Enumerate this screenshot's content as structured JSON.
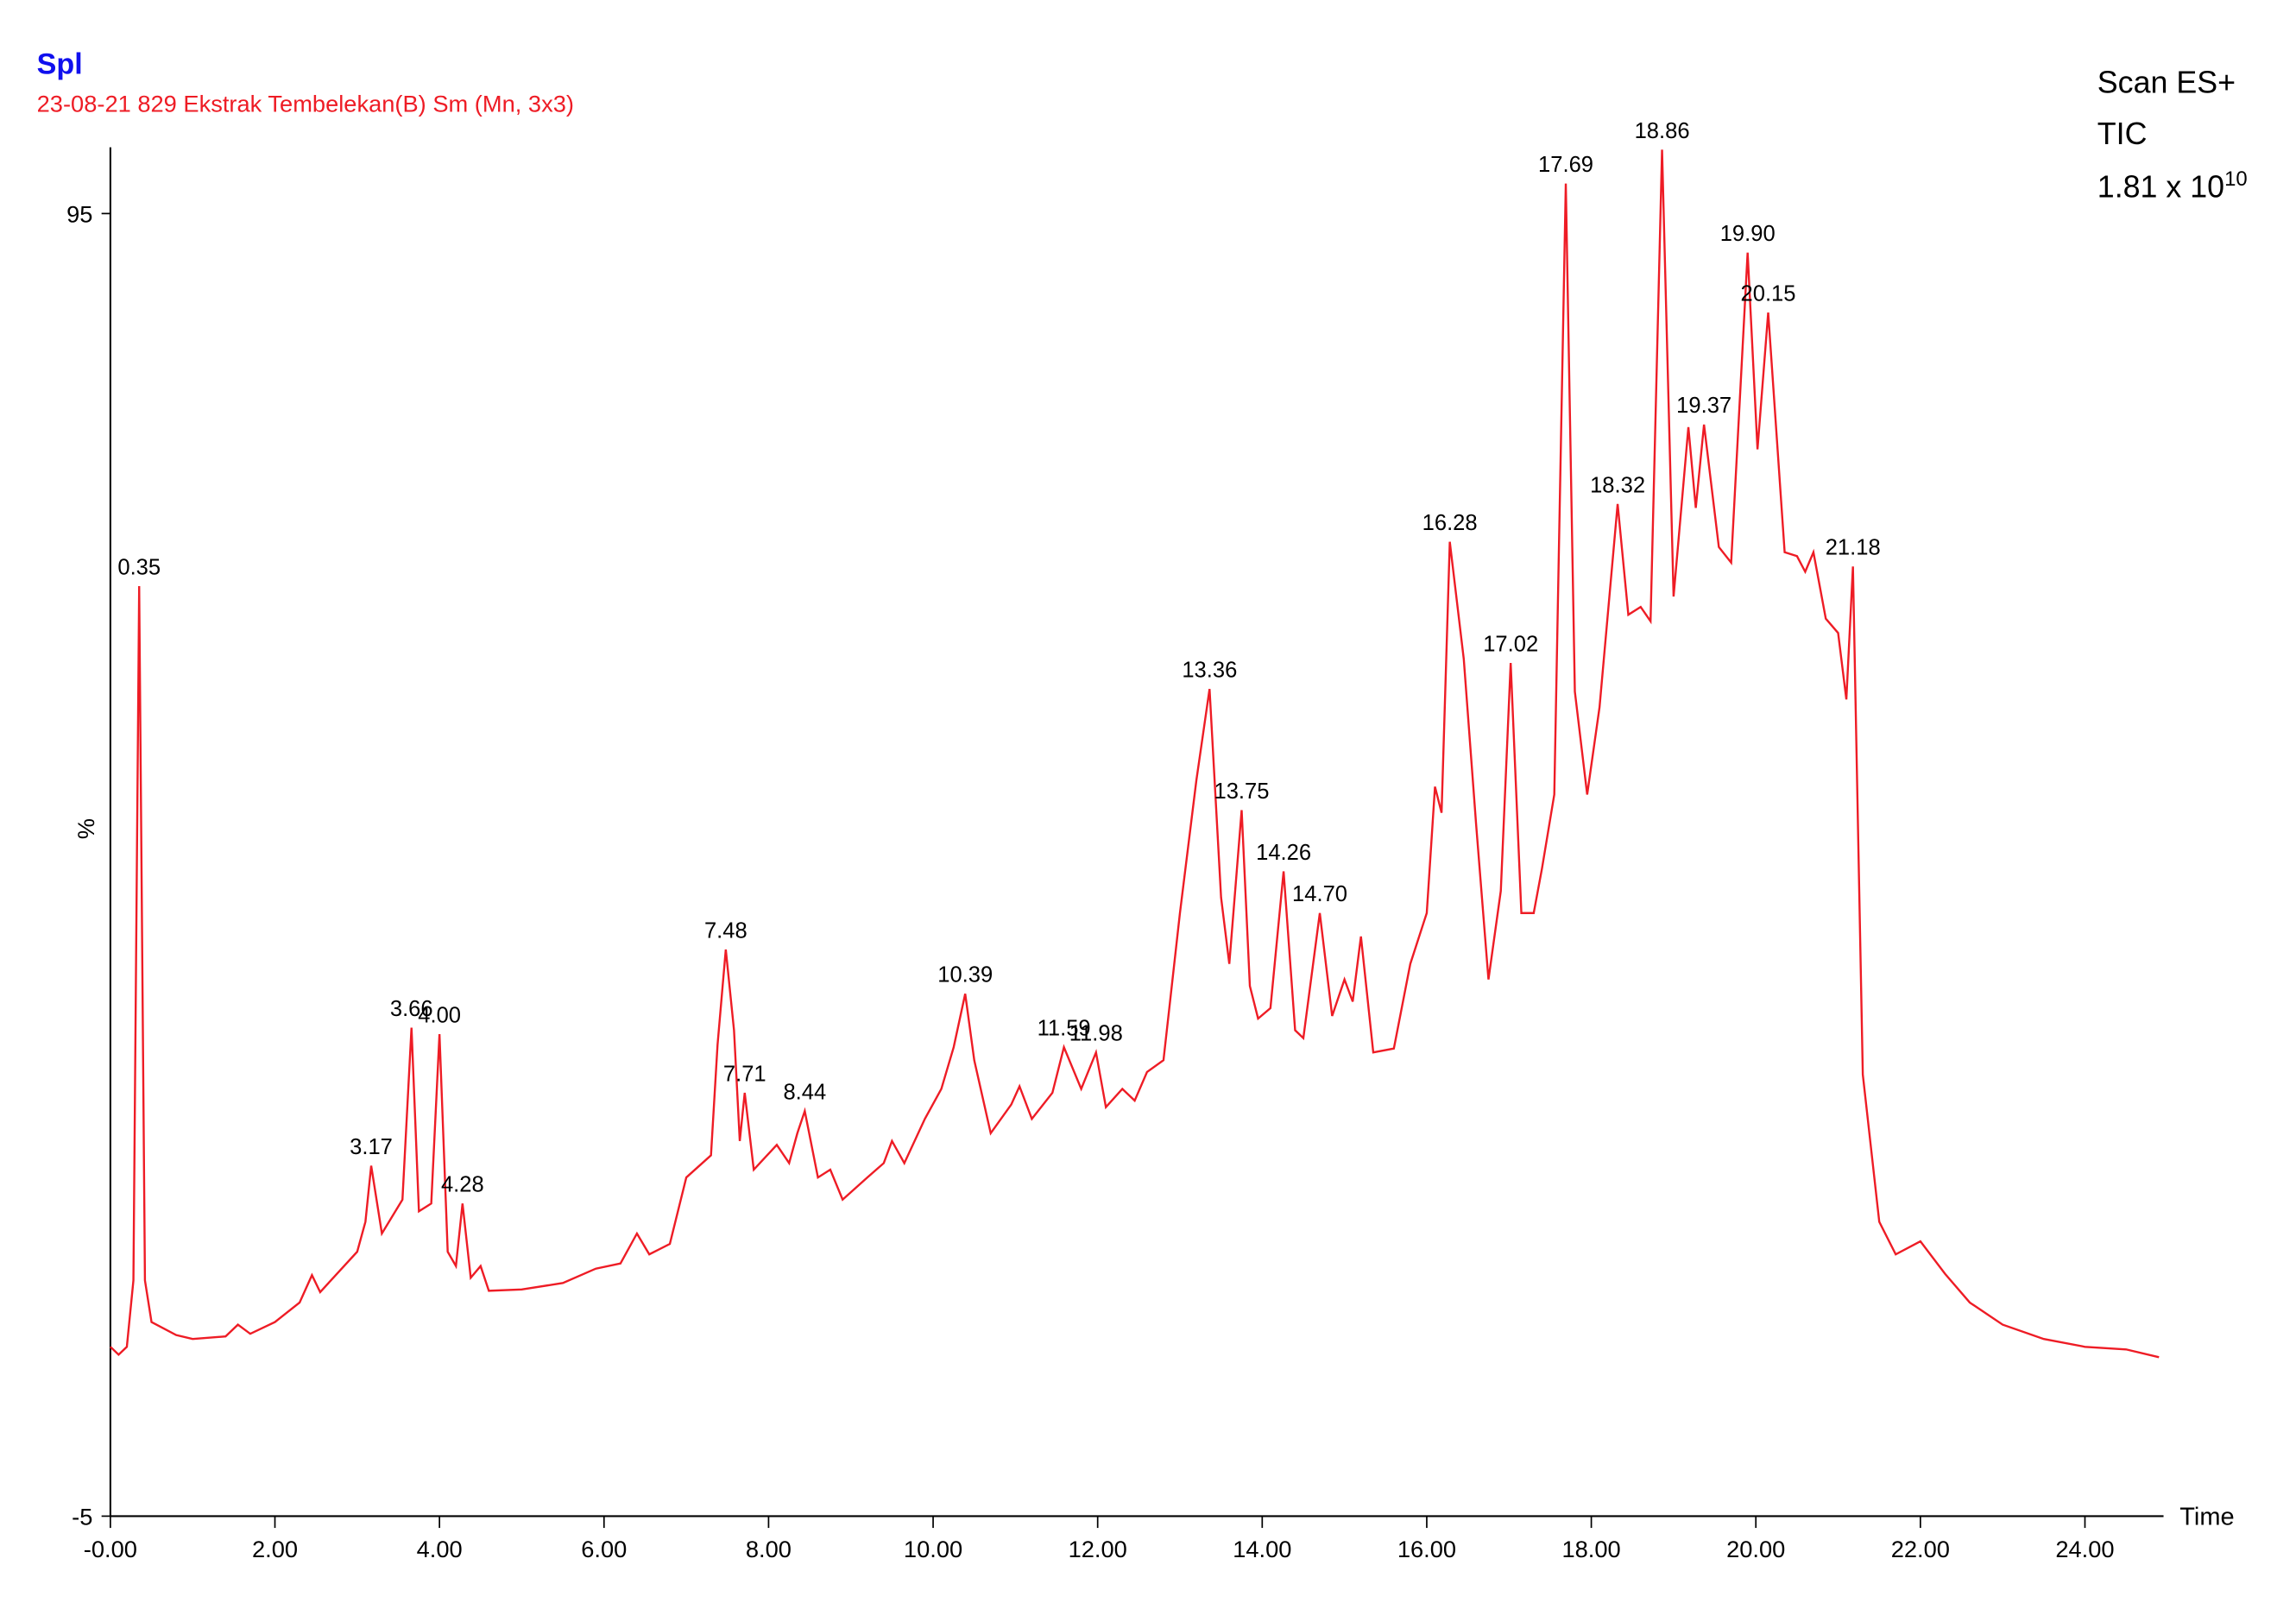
{
  "chart_data": {
    "type": "line",
    "title": "Spl",
    "subtitle": "23-08-21 829 Ekstrak Tembelekan(B) Sm (Mn, 3x3)",
    "annotations": [
      "Scan ES+",
      "TIC",
      {
        "base": "1.81 x 10",
        "exponent": "10"
      }
    ],
    "y_label": "%",
    "x_label": "Time",
    "xlim": [
      0,
      25
    ],
    "ylim": [
      -5,
      100
    ],
    "xticks": [
      {
        "value": 0,
        "label": "-0.00"
      },
      {
        "value": 2,
        "label": "2.00"
      },
      {
        "value": 4,
        "label": "4.00"
      },
      {
        "value": 6,
        "label": "6.00"
      },
      {
        "value": 8,
        "label": "8.00"
      },
      {
        "value": 10,
        "label": "10.00"
      },
      {
        "value": 12,
        "label": "12.00"
      },
      {
        "value": 14,
        "label": "14.00"
      },
      {
        "value": 16,
        "label": "16.00"
      },
      {
        "value": 18,
        "label": "18.00"
      },
      {
        "value": 20,
        "label": "20.00"
      },
      {
        "value": 22,
        "label": "22.00"
      },
      {
        "value": 24,
        "label": "24.00"
      }
    ],
    "yticks": [
      -5,
      95
    ],
    "x": [
      0,
      0.1,
      0.2,
      0.28,
      0.35,
      0.42,
      0.5,
      0.8,
      1.0,
      1.4,
      1.55,
      1.7,
      2.0,
      2.3,
      2.45,
      2.55,
      3.0,
      3.1,
      3.17,
      3.3,
      3.55,
      3.66,
      3.75,
      3.9,
      4.0,
      4.1,
      4.2,
      4.28,
      4.38,
      4.5,
      4.6,
      5.0,
      5.5,
      5.9,
      6.2,
      6.4,
      6.55,
      6.8,
      7.0,
      7.3,
      7.38,
      7.48,
      7.58,
      7.65,
      7.71,
      7.82,
      8.1,
      8.25,
      8.35,
      8.44,
      8.6,
      8.75,
      8.9,
      9.2,
      9.4,
      9.5,
      9.65,
      9.9,
      10.1,
      10.25,
      10.39,
      10.5,
      10.7,
      10.95,
      11.05,
      11.2,
      11.45,
      11.59,
      11.8,
      11.98,
      12.1,
      12.3,
      12.45,
      12.6,
      12.8,
      13.0,
      13.2,
      13.36,
      13.5,
      13.6,
      13.75,
      13.85,
      13.95,
      14.1,
      14.26,
      14.4,
      14.5,
      14.7,
      14.85,
      15.0,
      15.1,
      15.2,
      15.35,
      15.6,
      15.8,
      16.0,
      16.1,
      16.18,
      16.28,
      16.45,
      16.6,
      16.75,
      16.9,
      17.02,
      17.15,
      17.3,
      17.4,
      17.55,
      17.69,
      17.8,
      17.95,
      18.1,
      18.32,
      18.45,
      18.6,
      18.72,
      18.86,
      19.0,
      19.18,
      19.27,
      19.37,
      19.55,
      19.7,
      19.9,
      20.02,
      20.15,
      20.35,
      20.5,
      20.6,
      20.7,
      20.85,
      21.0,
      21.1,
      21.18,
      21.3,
      21.5,
      21.7,
      22.0,
      22.3,
      22.6,
      23.0,
      23.5,
      24.0,
      24.5,
      24.9
    ],
    "series": [
      {
        "color": "#ee1c25",
        "values": [
          8.0,
          7.4,
          8.0,
          13.1,
          66.4,
          13.1,
          9.9,
          8.9,
          8.6,
          8.8,
          9.7,
          9.0,
          9.9,
          11.4,
          13.5,
          12.2,
          15.3,
          17.6,
          21.9,
          16.7,
          19.3,
          32.5,
          18.4,
          19.0,
          32.0,
          15.3,
          14.2,
          19.0,
          13.3,
          14.2,
          12.3,
          12.4,
          12.9,
          14.0,
          14.4,
          16.7,
          15.1,
          15.9,
          21.0,
          22.7,
          31.2,
          38.5,
          32.3,
          23.8,
          27.5,
          21.6,
          23.5,
          22.1,
          24.4,
          26.1,
          21.0,
          21.6,
          19.3,
          21.0,
          22.1,
          23.8,
          22.1,
          25.5,
          27.8,
          31.0,
          35.1,
          30.0,
          24.4,
          26.6,
          28.0,
          25.5,
          27.5,
          31.0,
          27.8,
          30.6,
          26.4,
          27.8,
          26.9,
          29.1,
          30.0,
          41.3,
          51.5,
          58.5,
          42.5,
          37.4,
          49.2,
          35.7,
          33.2,
          34.0,
          44.5,
          32.3,
          31.7,
          41.3,
          33.4,
          36.2,
          34.5,
          39.5,
          30.6,
          30.9,
          37.4,
          41.3,
          51.0,
          49.0,
          69.8,
          60.8,
          48.1,
          36.2,
          43.0,
          60.5,
          41.3,
          41.3,
          44.7,
          50.4,
          97.3,
          58.3,
          50.4,
          57.1,
          72.7,
          64.2,
          64.8,
          63.7,
          99.9,
          65.6,
          78.6,
          72.4,
          78.8,
          69.4,
          68.2,
          92.0,
          76.9,
          87.4,
          69.0,
          68.7,
          67.5,
          69.0,
          63.9,
          62.8,
          57.7,
          67.9,
          28.9,
          17.6,
          15.1,
          16.1,
          13.6,
          11.4,
          9.7,
          8.6,
          8.0,
          7.8,
          7.2
        ]
      }
    ],
    "peak_labels": [
      0.35,
      3.17,
      3.66,
      {
        "value": 4.0,
        "label": "4.00"
      },
      4.28,
      7.48,
      7.71,
      8.44,
      10.39,
      11.59,
      11.98,
      13.36,
      13.75,
      14.26,
      {
        "value": 14.7,
        "label": "14.70"
      },
      16.28,
      17.02,
      17.69,
      18.32,
      18.86,
      19.37,
      {
        "value": 19.9,
        "label": "19.90"
      },
      20.15,
      21.18
    ]
  }
}
